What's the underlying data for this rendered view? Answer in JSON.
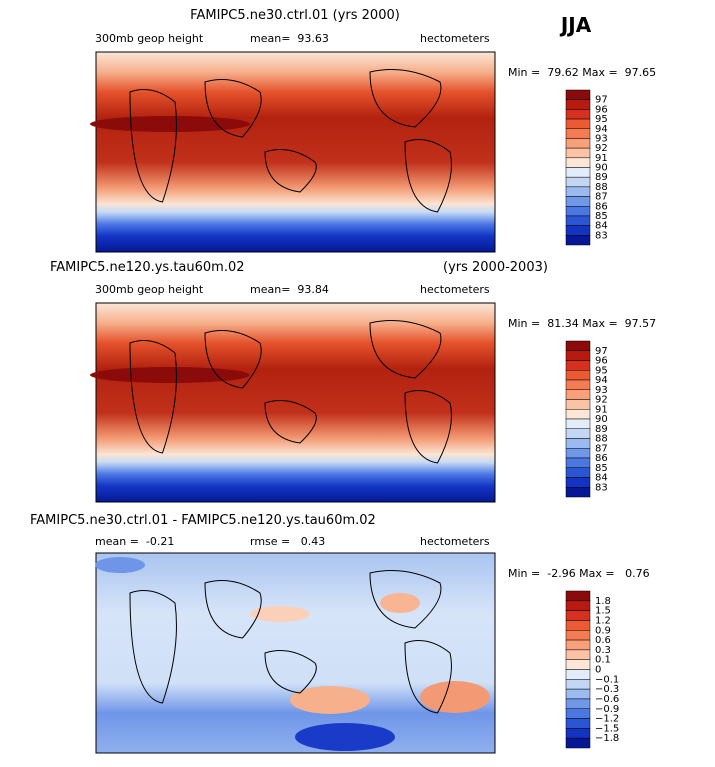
{
  "season": "JJA",
  "panels": [
    {
      "title": "FAMIPC5.ne30.ctrl.01 (yrs 2000)",
      "left": "300mb geop height",
      "center": "mean=  93.63",
      "right": "hectometers",
      "minmax": "Min =  79.62 Max =  97.65",
      "colorbar": [
        "97",
        "96",
        "95",
        "94",
        "93",
        "92",
        "91",
        "90",
        "89",
        "88",
        "87",
        "86",
        "85",
        "84",
        "83"
      ]
    },
    {
      "title": "FAMIPC5.ne120.ys.tau60m.02",
      "title_right": "(yrs 2000-2003)",
      "left": "300mb geop height",
      "center": "mean=  93.84",
      "right": "hectometers",
      "minmax": "Min =  81.34 Max =  97.57",
      "colorbar": [
        "97",
        "96",
        "95",
        "94",
        "93",
        "92",
        "91",
        "90",
        "89",
        "88",
        "87",
        "86",
        "85",
        "84",
        "83"
      ]
    },
    {
      "title": "FAMIPC5.ne30.ctrl.01 - FAMIPC5.ne120.ys.tau60m.02",
      "left": "mean =  -0.21",
      "center": "rmse =   0.43",
      "right": "hectometers",
      "minmax": "Min =  -2.96 Max =   0.76",
      "colorbar": [
        "1.8",
        "1.5",
        "1.2",
        "0.9",
        "0.6",
        "0.3",
        "0.1",
        "0",
        "−0.1",
        "−0.3",
        "−0.6",
        "−0.9",
        "−1.2",
        "−1.5",
        "−1.8"
      ]
    }
  ]
}
